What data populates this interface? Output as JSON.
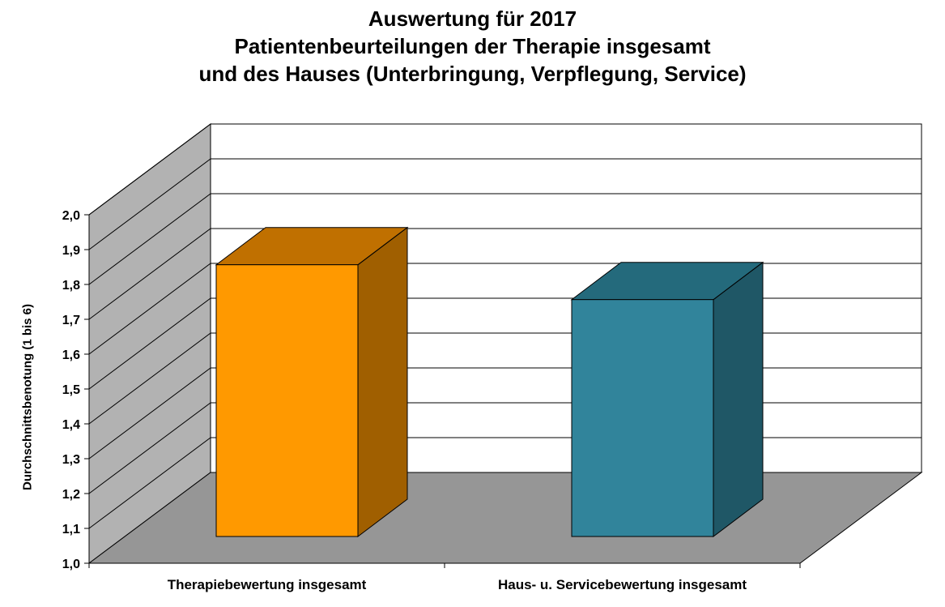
{
  "chart_data": {
    "type": "bar",
    "title_lines": [
      "Auswertung für 2017",
      "Patientenbeurteilungen der Therapie insgesamt",
      "und des Hauses (Unterbringung, Verpflegung, Service)"
    ],
    "ylabel": "Durchschnittsbenotung (1 bis 6)",
    "xlabel": "",
    "ylim": [
      1.0,
      2.0
    ],
    "yticks": [
      "1,0",
      "1,1",
      "1,2",
      "1,3",
      "1,4",
      "1,5",
      "1,6",
      "1,7",
      "1,8",
      "1,9",
      "2,0"
    ],
    "categories": [
      "Therapiebewertung insgesamt",
      "Haus- u. Servicebewertung insgesamt"
    ],
    "values": [
      1.81,
      1.71
    ],
    "grid": true,
    "style": "3d",
    "colors": {
      "bar1_front": "#FF9900",
      "bar1_top": "#C07000",
      "bar1_side": "#A05F00",
      "bar2_front": "#31849B",
      "bar2_top": "#246A7C",
      "bar2_side": "#1F5766",
      "wall_side": "#B2B2B2",
      "floor": "#969696"
    }
  }
}
